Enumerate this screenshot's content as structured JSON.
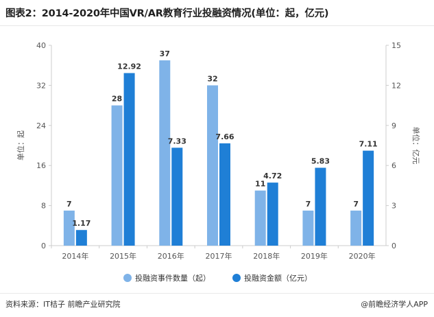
{
  "title": "图表2：2014-2020年中国VR/AR教育行业投融资情况(单位：起，亿元)",
  "colors": {
    "series1": "#7fb3e8",
    "series2": "#1f7fd6",
    "axis": "#cccccc",
    "text": "#555555",
    "label": "#333333"
  },
  "chart_data": {
    "type": "bar",
    "categories": [
      "2014年",
      "2015年",
      "2016年",
      "2017年",
      "2018年",
      "2019年",
      "2020年"
    ],
    "series": [
      {
        "name": "投融资事件数量（起）",
        "axis": "left",
        "values": [
          7,
          28,
          37,
          32,
          11,
          7,
          7
        ],
        "labels": [
          "7",
          "28",
          "37",
          "32",
          "11",
          "7",
          "7"
        ]
      },
      {
        "name": "投融资金额（亿元）",
        "axis": "right",
        "values": [
          1.17,
          12.92,
          7.33,
          7.66,
          4.72,
          5.83,
          7.11
        ],
        "labels": [
          "1.17",
          "12.92",
          "7.33",
          "7.66",
          "4.72",
          "5.83",
          "7.11"
        ]
      }
    ],
    "ylabel_left": "单位：起",
    "ylabel_right": "单位：亿元",
    "yticks_left": [
      "0",
      "8",
      "16",
      "24",
      "32",
      "40"
    ],
    "yticks_right": [
      "0",
      "3",
      "6",
      "9",
      "12",
      "15"
    ],
    "ylim_left": [
      0,
      40
    ],
    "ylim_right": [
      0,
      15
    ],
    "legend_position": "bottom",
    "grid": false
  },
  "footer": {
    "source": "资料来源：IT桔子 前瞻产业研究院",
    "brand": "@前瞻经济学人APP"
  }
}
